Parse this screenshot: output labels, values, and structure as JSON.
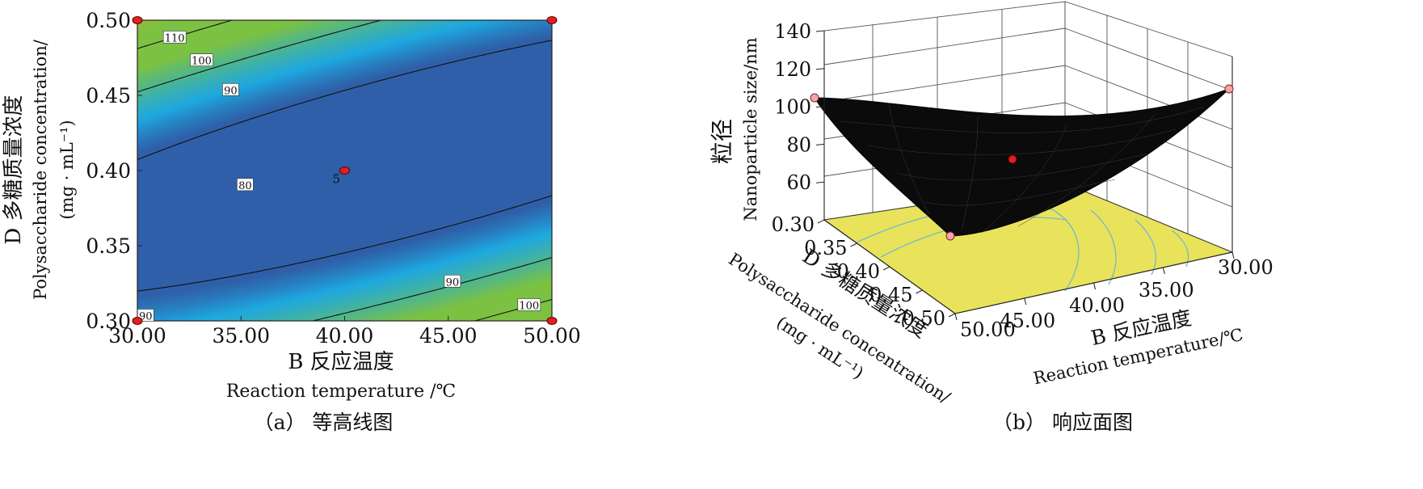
{
  "colors": {
    "contour_low": "#2f5fa8",
    "contour_mid": "#1ea8e0",
    "contour_high": "#7cc242",
    "contour_peak": "#f39a2b",
    "surface": "#0b0b0b",
    "floor": "#e8e35a",
    "design_point": "#e02020"
  },
  "chart_data": [
    {
      "type": "contour",
      "caption": "（a） 等高线图",
      "xlabel": "B 反应温度",
      "xlabel_en": "Reaction temperature /℃",
      "ylabel": "D 多糖质量浓度",
      "ylabel_en_line1": "Polysaccharide concentration/",
      "ylabel_en_line2": "(mg · mL⁻¹)",
      "xlim": [
        30,
        50
      ],
      "ylim": [
        0.3,
        0.5
      ],
      "x_ticks": [
        "30.00",
        "35.00",
        "40.00",
        "45.00",
        "50.00"
      ],
      "y_ticks": [
        "0.30",
        "0.35",
        "0.40",
        "0.45",
        "0.50"
      ],
      "contour_levels": [
        80,
        90,
        100,
        110
      ],
      "contour_labels": [
        {
          "text": "110",
          "x": 31.8,
          "y": 0.4885
        },
        {
          "text": "100",
          "x": 33.1,
          "y": 0.4733
        },
        {
          "text": "90",
          "x": 34.5,
          "y": 0.4536
        },
        {
          "text": "80",
          "x": 35.2,
          "y": 0.3904
        },
        {
          "text": "90",
          "x": 45.2,
          "y": 0.3262
        },
        {
          "text": "100",
          "x": 48.9,
          "y": 0.3105
        },
        {
          "text": "90",
          "x": 30.4,
          "y": 0.3035
        }
      ],
      "center_label": {
        "text": "5",
        "x": 39.6,
        "y": 0.3943
      },
      "design_points": [
        {
          "x": 30,
          "y": 0.5
        },
        {
          "x": 50,
          "y": 0.5
        },
        {
          "x": 40,
          "y": 0.4
        },
        {
          "x": 30,
          "y": 0.3
        },
        {
          "x": 50,
          "y": 0.3
        }
      ]
    },
    {
      "type": "surface3d",
      "caption": "（b） 响应面图",
      "zlabel": "粒径",
      "zlabel_en": "Nanoparticle size/nm",
      "xlabel": "B 反应温度",
      "xlabel_en": "Reaction temperature/℃",
      "ylabel": "D 多糖质量浓度",
      "ylabel_en_line1": "Polysaccharide concentration/",
      "ylabel_en_line2": "(mg · mL⁻¹)",
      "zlim": [
        40,
        140
      ],
      "z_ticks": [
        "140",
        "120",
        "100",
        "80",
        "60"
      ],
      "x_ticks": [
        "30.00",
        "35.00",
        "40.00",
        "45.00",
        "50.00"
      ],
      "y_ticks": [
        "0.30",
        "0.35",
        "0.40",
        "0.45",
        "0.50"
      ],
      "corner_values": [
        {
          "temperature": 50,
          "concentration": 0.3,
          "size": 102
        },
        {
          "temperature": 30,
          "concentration": 0.5,
          "size": 99
        },
        {
          "temperature": 50,
          "concentration": 0.5,
          "size": 67
        },
        {
          "temperature": 40,
          "concentration": 0.4,
          "size": 76
        }
      ]
    }
  ]
}
